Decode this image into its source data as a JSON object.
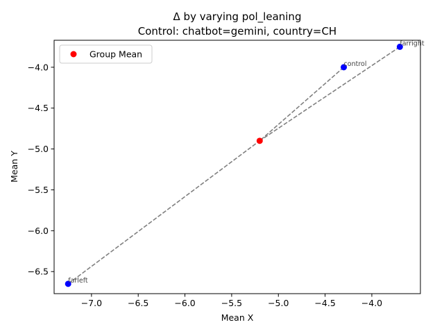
{
  "chart_data": {
    "type": "scatter",
    "title_line1": "Δ by varying pol_leaning",
    "title_line2": "Control: chatbot=gemini, country=CH",
    "xlabel": "Mean X",
    "ylabel": "Mean Y",
    "xlim": [
      -7.4,
      -3.48
    ],
    "ylim": [
      -6.77,
      -3.67
    ],
    "xticks": [
      -7.0,
      -6.5,
      -6.0,
      -5.5,
      -5.0,
      -4.5,
      -4.0
    ],
    "xtick_labels": [
      "−7.0",
      "−6.5",
      "−6.0",
      "−5.5",
      "−5.0",
      "−4.5",
      "−4.0"
    ],
    "yticks": [
      -4.0,
      -4.5,
      -5.0,
      -5.5,
      -6.0,
      -6.5
    ],
    "ytick_labels": [
      "−4.0",
      "−4.5",
      "−5.0",
      "−5.5",
      "−6.0",
      "−6.5"
    ],
    "group_mean": {
      "name": "Group Mean",
      "x": -5.2,
      "y": -4.9,
      "color": "#ff0000"
    },
    "points": [
      {
        "label": "farright",
        "x": -3.7,
        "y": -3.75
      },
      {
        "label": "control",
        "x": -4.3,
        "y": -4.0
      },
      {
        "label": "farleft",
        "x": -7.25,
        "y": -6.65
      }
    ],
    "point_color": "#0000ff",
    "line_color": "#808080",
    "legend": {
      "label": "Group Mean",
      "position": "upper-left"
    },
    "grid": false
  }
}
